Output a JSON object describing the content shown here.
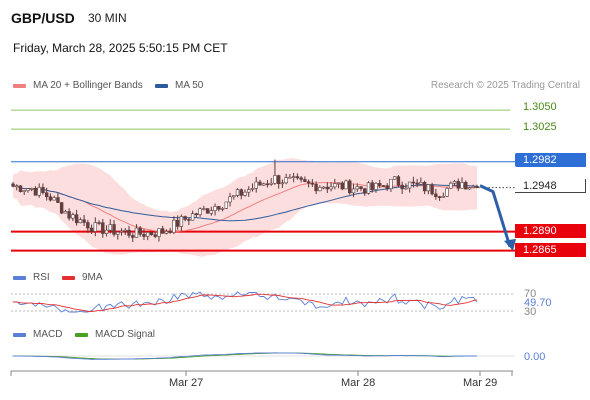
{
  "header": {
    "pair": "GBP/USD",
    "timeframe": "30 MIN",
    "datetime": "Friday, March 28, 2025 5:50:15 PM CET"
  },
  "legend_main": {
    "bb_label": "MA 20 + Bollinger Bands",
    "ma50_label": "MA 50",
    "bb_color": "#f08080",
    "ma50_color": "#2e5b9a"
  },
  "credit": "Research © 2025 Trading Central",
  "levels": [
    {
      "label": "1.3050",
      "style": "resistance-green"
    },
    {
      "label": "1.3025",
      "style": "resistance-green"
    },
    {
      "label": "1.2982",
      "style": "pivot-blue"
    },
    {
      "label": "1.2948",
      "style": "current-price"
    },
    {
      "label": "1.2890",
      "style": "support-red"
    },
    {
      "label": "1.2865",
      "style": "support-red"
    }
  ],
  "rsi_legend": {
    "rsi_label": "RSI",
    "ma_label": "9MA",
    "rsi_color": "#5b7fd6",
    "ma_color": "#e53030"
  },
  "rsi_axis": {
    "upper": "70",
    "value": "49.70",
    "lower": "30"
  },
  "macd_legend": {
    "macd_label": "MACD",
    "signal_label": "MACD Signal",
    "macd_color": "#5b7fd6",
    "signal_color": "#4aa020"
  },
  "macd_axis": {
    "value": "0.00"
  },
  "x_axis": {
    "labels": [
      "Mar 27",
      "Mar 28",
      "Mar 29"
    ]
  },
  "chart_data": {
    "type": "candlestick",
    "title": "GBP/USD",
    "y_axis": {
      "min": 1.285,
      "max": 1.307,
      "gridlines": false
    },
    "x_ticks": [
      "Mar 27",
      "Mar 28",
      "Mar 29"
    ],
    "key_levels": [
      1.305,
      1.3025,
      1.2982,
      1.2948,
      1.289,
      1.2865
    ],
    "price_path_keypoints": [
      {
        "bar": 0,
        "price": 1.295
      },
      {
        "bar": 5,
        "price": 1.2947
      },
      {
        "bar": 10,
        "price": 1.2935
      },
      {
        "bar": 15,
        "price": 1.2912
      },
      {
        "bar": 22,
        "price": 1.2895
      },
      {
        "bar": 33,
        "price": 1.2887
      },
      {
        "bar": 40,
        "price": 1.289
      },
      {
        "bar": 48,
        "price": 1.2912
      },
      {
        "bar": 56,
        "price": 1.2928
      },
      {
        "bar": 64,
        "price": 1.2948
      },
      {
        "bar": 70,
        "price": 1.296
      },
      {
        "bar": 78,
        "price": 1.2952
      },
      {
        "bar": 88,
        "price": 1.295
      },
      {
        "bar": 96,
        "price": 1.2946
      },
      {
        "bar": 102,
        "price": 1.2956
      },
      {
        "bar": 110,
        "price": 1.2948
      },
      {
        "bar": 114,
        "price": 1.2942
      },
      {
        "bar": 120,
        "price": 1.2955
      },
      {
        "bar": 124,
        "price": 1.2948
      }
    ],
    "last_price": 1.2948,
    "spike_high": 1.2985,
    "forecast_arrow": {
      "from": 1.2948,
      "to": 1.287
    },
    "rsi": {
      "upper": 70,
      "lower": 30,
      "last": 49.7
    },
    "macd": {
      "zero": 0.0
    }
  }
}
